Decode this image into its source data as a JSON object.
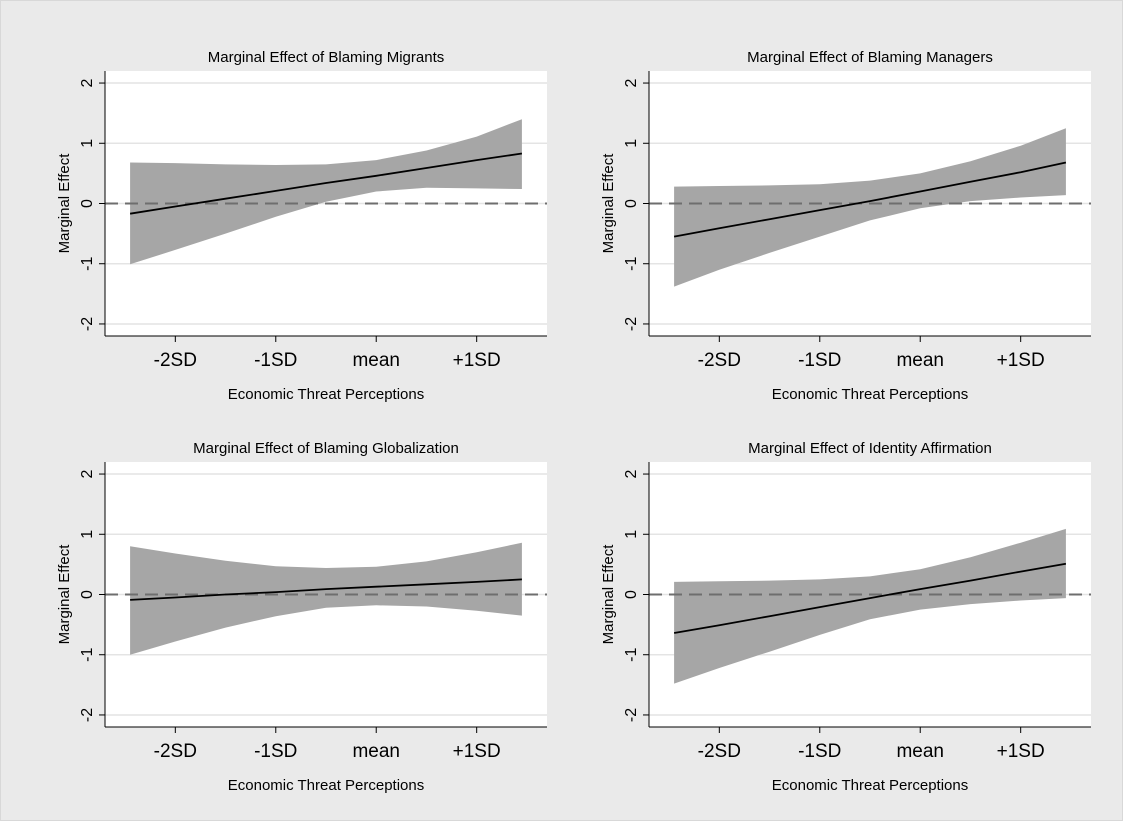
{
  "chart_data": [
    {
      "type": "line",
      "title": "Marginal Effect of Blaming Migrants",
      "xlabel": "Economic Threat Perceptions",
      "ylabel": "Marginal Effect",
      "x_tick_labels": [
        "-2SD",
        "-1SD",
        "mean",
        "+1SD"
      ],
      "y_ticks": [
        -2,
        -1,
        0,
        1,
        2
      ],
      "ylim": [
        -2.2,
        2.2
      ],
      "xlim": [
        -2.7,
        1.7
      ],
      "reference_line": {
        "y": 0,
        "style": "dashed"
      },
      "x": [
        -2.45,
        -2.0,
        -1.5,
        -1.0,
        -0.5,
        0.0,
        0.5,
        1.0,
        1.45
      ],
      "series": [
        {
          "values": [
            -0.17,
            -0.05,
            0.08,
            0.21,
            0.34,
            0.46,
            0.59,
            0.72,
            0.83
          ]
        }
      ],
      "ci_upper": [
        0.68,
        0.67,
        0.65,
        0.64,
        0.65,
        0.72,
        0.88,
        1.11,
        1.4
      ],
      "ci_lower": [
        -1.01,
        -0.77,
        -0.5,
        -0.22,
        0.03,
        0.2,
        0.26,
        0.25,
        0.24
      ]
    },
    {
      "type": "line",
      "title": "Marginal Effect of Blaming Managers",
      "xlabel": "Economic Threat Perceptions",
      "ylabel": "Marginal Effect",
      "x_tick_labels": [
        "-2SD",
        "-1SD",
        "mean",
        "+1SD"
      ],
      "y_ticks": [
        -2,
        -1,
        0,
        1,
        2
      ],
      "ylim": [
        -2.2,
        2.2
      ],
      "xlim": [
        -2.7,
        1.7
      ],
      "reference_line": {
        "y": 0,
        "style": "dashed"
      },
      "x": [
        -2.45,
        -2.0,
        -1.5,
        -1.0,
        -0.5,
        0.0,
        0.5,
        1.0,
        1.45
      ],
      "series": [
        {
          "values": [
            -0.55,
            -0.41,
            -0.26,
            -0.11,
            0.04,
            0.2,
            0.36,
            0.52,
            0.68
          ]
        }
      ],
      "ci_upper": [
        0.28,
        0.29,
        0.3,
        0.32,
        0.38,
        0.5,
        0.7,
        0.96,
        1.25
      ],
      "ci_lower": [
        -1.38,
        -1.1,
        -0.82,
        -0.55,
        -0.28,
        -0.08,
        0.04,
        0.1,
        0.14
      ]
    },
    {
      "type": "line",
      "title": "Marginal Effect of Blaming Globalization",
      "xlabel": "Economic Threat Perceptions",
      "ylabel": "Marginal Effect",
      "x_tick_labels": [
        "-2SD",
        "-1SD",
        "mean",
        "+1SD"
      ],
      "y_ticks": [
        -2,
        -1,
        0,
        1,
        2
      ],
      "ylim": [
        -2.2,
        2.2
      ],
      "xlim": [
        -2.7,
        1.7
      ],
      "reference_line": {
        "y": 0,
        "style": "dashed"
      },
      "x": [
        -2.45,
        -2.0,
        -1.5,
        -1.0,
        -0.5,
        0.0,
        0.5,
        1.0,
        1.45
      ],
      "series": [
        {
          "values": [
            -0.09,
            -0.05,
            0.0,
            0.04,
            0.09,
            0.13,
            0.17,
            0.21,
            0.25
          ]
        }
      ],
      "ci_upper": [
        0.8,
        0.68,
        0.56,
        0.47,
        0.44,
        0.46,
        0.55,
        0.7,
        0.86
      ],
      "ci_lower": [
        -1.0,
        -0.78,
        -0.55,
        -0.36,
        -0.22,
        -0.18,
        -0.2,
        -0.27,
        -0.35
      ]
    },
    {
      "type": "line",
      "title": "Marginal Effect of Identity Affirmation",
      "xlabel": "Economic Threat Perceptions",
      "ylabel": "Marginal Effect",
      "x_tick_labels": [
        "-2SD",
        "-1SD",
        "mean",
        "+1SD"
      ],
      "y_ticks": [
        -2,
        -1,
        0,
        1,
        2
      ],
      "ylim": [
        -2.2,
        2.2
      ],
      "xlim": [
        -2.7,
        1.7
      ],
      "reference_line": {
        "y": 0,
        "style": "dashed"
      },
      "x": [
        -2.45,
        -2.0,
        -1.5,
        -1.0,
        -0.5,
        0.0,
        0.5,
        1.0,
        1.45
      ],
      "series": [
        {
          "values": [
            -0.64,
            -0.51,
            -0.36,
            -0.21,
            -0.06,
            0.09,
            0.23,
            0.38,
            0.51
          ]
        }
      ],
      "ci_upper": [
        0.21,
        0.22,
        0.23,
        0.25,
        0.3,
        0.42,
        0.62,
        0.86,
        1.09
      ],
      "ci_lower": [
        -1.48,
        -1.22,
        -0.95,
        -0.67,
        -0.41,
        -0.25,
        -0.16,
        -0.1,
        -0.06
      ]
    }
  ],
  "colors": {
    "background": "#eaeaea",
    "plot_area": "#ffffff",
    "ci_band": "#a6a6a6",
    "effect_line": "#000000",
    "zero_line": "#6e6e6e",
    "gridline": "#e4e4e4"
  }
}
